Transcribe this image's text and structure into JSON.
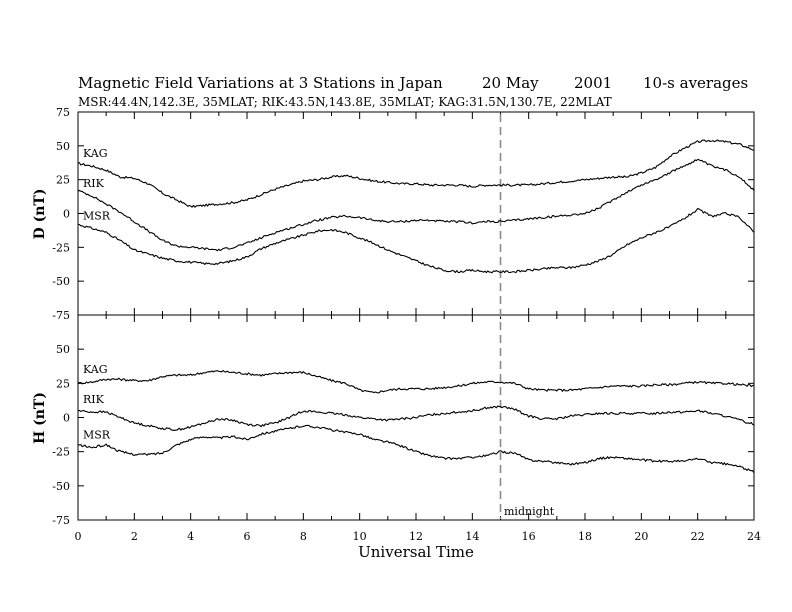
{
  "header": {
    "title_main": "Magnetic Field Variations at 3 Stations in Japan",
    "title_date": "20 May",
    "title_year": "2001",
    "title_avg": "10-s averages",
    "subtitle": "MSR:44.4N,142.3E, 35MLAT;   RIK:43.5N,143.8E, 35MLAT;   KAG:31.5N,130.7E, 22MLAT"
  },
  "annotations": {
    "midnight": "midnight"
  },
  "chart_data": [
    {
      "type": "line",
      "ylabel": "D (nT)",
      "xlabel": "",
      "xlim": [
        0,
        24
      ],
      "ylim": [
        -75,
        75
      ],
      "yticks": [
        75,
        50,
        25,
        0,
        -25,
        -50,
        -75
      ],
      "grid": false,
      "series": [
        {
          "name": "KAG",
          "x": [
            0,
            0.5,
            1,
            1.5,
            2,
            2.5,
            3,
            3.5,
            4,
            4.5,
            5,
            5.5,
            6,
            6.5,
            7,
            7.5,
            8,
            8.5,
            9,
            9.5,
            10,
            10.5,
            11,
            11.5,
            12,
            12.5,
            13,
            13.5,
            14,
            14.5,
            15,
            15.5,
            16,
            16.5,
            17,
            17.5,
            18,
            18.5,
            19,
            19.5,
            20,
            20.5,
            21,
            21.5,
            22,
            22.5,
            23,
            23.5,
            24
          ],
          "values": [
            37,
            35,
            32,
            27,
            26,
            22,
            15,
            10,
            5,
            6,
            7,
            8,
            10,
            14,
            18,
            21,
            24,
            25,
            27,
            28,
            26,
            24,
            23,
            22,
            22,
            21,
            21,
            21,
            20,
            21,
            21,
            21,
            21,
            22,
            23,
            24,
            25,
            26,
            27,
            27,
            30,
            34,
            42,
            48,
            53,
            54,
            53,
            51,
            47
          ]
        },
        {
          "name": "RIK",
          "x": [
            0,
            0.5,
            1,
            1.5,
            2,
            2.5,
            3,
            3.5,
            4,
            4.5,
            5,
            5.5,
            6,
            6.5,
            7,
            7.5,
            8,
            8.5,
            9,
            9.5,
            10,
            10.5,
            11,
            11.5,
            12,
            12.5,
            13,
            13.5,
            14,
            14.5,
            15,
            15.5,
            16,
            16.5,
            17,
            17.5,
            18,
            18.5,
            19,
            19.5,
            20,
            20.5,
            21,
            21.5,
            22,
            22.5,
            23,
            23.5,
            24
          ],
          "values": [
            17,
            13,
            7,
            1,
            -6,
            -13,
            -20,
            -24,
            -25,
            -26,
            -27,
            -25,
            -22,
            -18,
            -14,
            -11,
            -8,
            -5,
            -3,
            -2,
            -3,
            -5,
            -6,
            -6,
            -5,
            -5,
            -6,
            -6,
            -7,
            -6,
            -6,
            -5,
            -4,
            -3,
            -2,
            -1,
            0,
            4,
            10,
            16,
            21,
            25,
            30,
            35,
            40,
            35,
            32,
            27,
            17
          ]
        },
        {
          "name": "MSR",
          "x": [
            0,
            0.5,
            1,
            1.5,
            2,
            2.5,
            3,
            3.5,
            4,
            4.5,
            5,
            5.5,
            6,
            6.5,
            7,
            7.5,
            8,
            8.5,
            9,
            9.5,
            10,
            10.5,
            11,
            11.5,
            12,
            12.5,
            13,
            13.5,
            14,
            14.5,
            15,
            15.5,
            16,
            16.5,
            17,
            17.5,
            18,
            18.5,
            19,
            19.5,
            20,
            20.5,
            21,
            21.5,
            22,
            22.5,
            23,
            23.5,
            24
          ],
          "values": [
            -8,
            -11,
            -14,
            -20,
            -27,
            -30,
            -33,
            -35,
            -36,
            -37,
            -37,
            -35,
            -32,
            -26,
            -22,
            -19,
            -16,
            -13,
            -12,
            -14,
            -18,
            -22,
            -27,
            -31,
            -35,
            -39,
            -42,
            -43,
            -42,
            -43,
            -43,
            -43,
            -42,
            -41,
            -40,
            -40,
            -38,
            -35,
            -30,
            -23,
            -18,
            -14,
            -10,
            -4,
            3,
            -2,
            0,
            -3,
            -14
          ]
        }
      ]
    },
    {
      "type": "line",
      "ylabel": "H (nT)",
      "xlabel": "Universal Time",
      "xlim": [
        0,
        24
      ],
      "ylim": [
        -75,
        75
      ],
      "yticks": [
        75,
        50,
        25,
        0,
        -25,
        -50,
        -75
      ],
      "xticks": [
        0,
        2,
        4,
        6,
        8,
        10,
        12,
        14,
        16,
        18,
        20,
        22,
        24
      ],
      "grid": false,
      "series": [
        {
          "name": "KAG",
          "x": [
            0,
            0.5,
            1,
            1.5,
            2,
            2.5,
            3,
            3.5,
            4,
            4.5,
            5,
            5.5,
            6,
            6.5,
            7,
            7.5,
            8,
            8.5,
            9,
            9.5,
            10,
            10.5,
            11,
            11.5,
            12,
            12.5,
            13,
            13.5,
            14,
            14.5,
            15,
            15.5,
            16,
            16.5,
            17,
            17.5,
            18,
            18.5,
            19,
            19.5,
            20,
            20.5,
            21,
            21.5,
            22,
            22.5,
            23,
            23.5,
            24
          ],
          "values": [
            25,
            26,
            28,
            28,
            27,
            27,
            30,
            31,
            31,
            33,
            34,
            33,
            32,
            31,
            32,
            33,
            33,
            30,
            27,
            25,
            20,
            18,
            20,
            21,
            21,
            21,
            22,
            23,
            25,
            26,
            26,
            25,
            21,
            20,
            20,
            20,
            21,
            22,
            23,
            23,
            23,
            24,
            24,
            25,
            26,
            25,
            25,
            24,
            23
          ]
        },
        {
          "name": "RIK",
          "x": [
            0,
            0.5,
            1,
            1.5,
            2,
            2.5,
            3,
            3.5,
            4,
            4.5,
            5,
            5.5,
            6,
            6.5,
            7,
            7.5,
            8,
            8.5,
            9,
            9.5,
            10,
            10.5,
            11,
            11.5,
            12,
            12.5,
            13,
            13.5,
            14,
            14.5,
            15,
            15.5,
            16,
            16.5,
            17,
            17.5,
            18,
            18.5,
            19,
            19.5,
            20,
            20.5,
            21,
            21.5,
            22,
            22.5,
            23,
            23.5,
            24
          ],
          "values": [
            5,
            4,
            4,
            0,
            -4,
            -6,
            -8,
            -9,
            -7,
            -4,
            -1,
            -2,
            -5,
            -6,
            -4,
            0,
            5,
            4,
            3,
            2,
            0,
            -1,
            -2,
            -1,
            0,
            2,
            3,
            4,
            5,
            7,
            8,
            6,
            1,
            -1,
            -1,
            1,
            2,
            3,
            3,
            3,
            3,
            3,
            4,
            4,
            5,
            3,
            1,
            -2,
            -5
          ]
        },
        {
          "name": "MSR",
          "x": [
            0,
            0.5,
            1,
            1.5,
            2,
            2.5,
            3,
            3.5,
            4,
            4.5,
            5,
            5.5,
            6,
            6.5,
            7,
            7.5,
            8,
            8.5,
            9,
            9.5,
            10,
            10.5,
            11,
            11.5,
            12,
            12.5,
            13,
            13.5,
            14,
            14.5,
            15,
            15.5,
            16,
            16.5,
            17,
            17.5,
            18,
            18.5,
            19,
            19.5,
            20,
            20.5,
            21,
            21.5,
            22,
            22.5,
            23,
            23.5,
            24
          ],
          "values": [
            -20,
            -22,
            -20,
            -25,
            -27,
            -27,
            -26,
            -20,
            -16,
            -14,
            -15,
            -14,
            -16,
            -12,
            -10,
            -8,
            -6,
            -7,
            -9,
            -11,
            -12,
            -16,
            -18,
            -21,
            -25,
            -28,
            -30,
            -30,
            -29,
            -28,
            -25,
            -26,
            -31,
            -32,
            -33,
            -34,
            -33,
            -30,
            -29,
            -30,
            -31,
            -32,
            -32,
            -32,
            -30,
            -33,
            -34,
            -36,
            -40
          ]
        }
      ]
    }
  ]
}
